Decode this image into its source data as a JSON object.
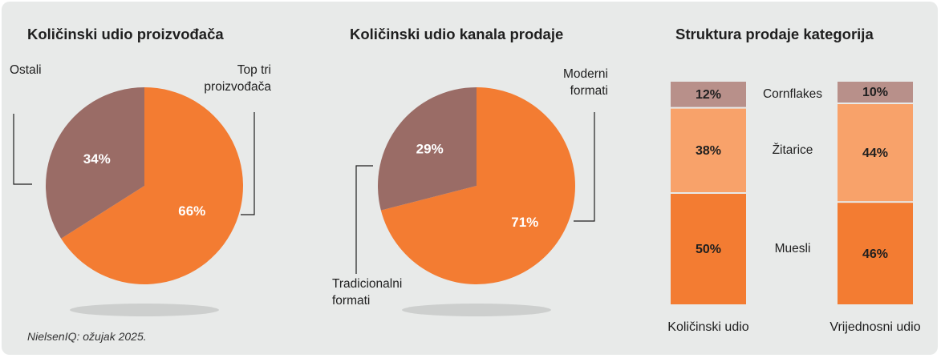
{
  "colors": {
    "orange": "#f37c32",
    "brown": "#9a6c66",
    "light_orange": "#f8a26a",
    "rose": "#b8908a",
    "background": "#e8eae9"
  },
  "source_note": "NielsenIQ: ožujak 2025.",
  "chart_data": [
    {
      "type": "pie",
      "title": "Količinski udio proizvođača",
      "slices": [
        {
          "label": "Top tri\nproizvođača",
          "value": 66,
          "value_label": "66%",
          "color": "#f37c32"
        },
        {
          "label": "Ostali",
          "value": 34,
          "value_label": "34%",
          "color": "#9a6c66"
        }
      ]
    },
    {
      "type": "pie",
      "title": "Količinski udio kanala prodaje",
      "slices": [
        {
          "label": "Moderni\nformati",
          "value": 71,
          "value_label": "71%",
          "color": "#f37c32"
        },
        {
          "label": "Tradicionalni\nformati",
          "value": 29,
          "value_label": "29%",
          "color": "#9a6c66"
        }
      ]
    },
    {
      "type": "bar",
      "stacked": true,
      "title": "Struktura prodaje kategorija",
      "categories": [
        "Količinski udio",
        "Vrijednosni udio"
      ],
      "series": [
        {
          "name": "Muesli",
          "values": [
            50,
            46
          ],
          "value_labels": [
            "50%",
            "46%"
          ],
          "color": "#f37c32"
        },
        {
          "name": "Žitarice",
          "values": [
            38,
            44
          ],
          "value_labels": [
            "38%",
            "44%"
          ],
          "color": "#f8a26a"
        },
        {
          "name": "Cornflakes",
          "values": [
            12,
            10
          ],
          "value_labels": [
            "12%",
            "10%"
          ],
          "color": "#b8908a"
        }
      ]
    }
  ]
}
